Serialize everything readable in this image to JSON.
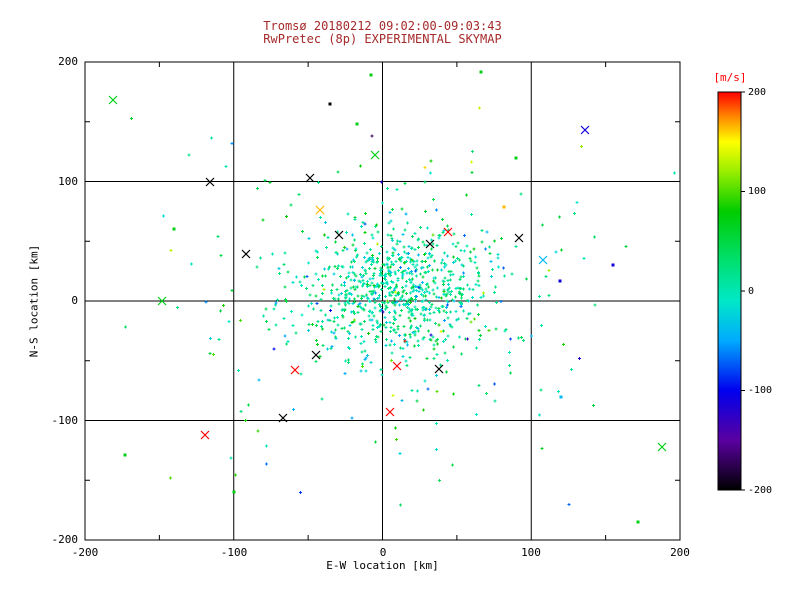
{
  "colors": {
    "background": "#ffffff",
    "title": "#a52a2a",
    "axis": "#000000",
    "colorbar_label": "#ff0000"
  },
  "chart_data": {
    "type": "scatter",
    "title": "Tromsø 20180212 09:02:00-09:03:43",
    "subtitle": "RwPretec (8p) EXPERIMENTAL SKYMAP",
    "xlabel": "E-W location [km]",
    "ylabel": "N-S location [km]",
    "xlim": [
      -200,
      200
    ],
    "ylim": [
      -200,
      200
    ],
    "xticks": [
      -200,
      -100,
      0,
      100,
      200
    ],
    "yticks": [
      200,
      100,
      0,
      -100,
      -200
    ],
    "grid": true,
    "gridlines": [
      -100,
      0,
      100
    ],
    "legend_position": "none",
    "colorbar": {
      "label": "[m/s]",
      "ticks": [
        200,
        100,
        0,
        -100,
        -200
      ],
      "min": -200,
      "max": 200,
      "position": "right"
    },
    "colormap": [
      {
        "v": -200,
        "c": "#000000"
      },
      {
        "v": -150,
        "c": "#5a00a0"
      },
      {
        "v": -100,
        "c": "#0000ee"
      },
      {
        "v": -50,
        "c": "#00aaff"
      },
      {
        "v": -10,
        "c": "#00e8c8"
      },
      {
        "v": 30,
        "c": "#00e070"
      },
      {
        "v": 80,
        "c": "#00cc00"
      },
      {
        "v": 120,
        "c": "#99ee00"
      },
      {
        "v": 150,
        "c": "#ffff00"
      },
      {
        "v": 175,
        "c": "#ff8800"
      },
      {
        "v": 200,
        "c": "#ff0000"
      }
    ],
    "clusters": [
      {
        "count": 650,
        "cx": 14,
        "cy": 10,
        "sx": 30,
        "sy": 26,
        "vmean": 10,
        "vsigma": 25,
        "seed": 101
      },
      {
        "count": 260,
        "cx": 10,
        "cy": 8,
        "sx": 55,
        "sy": 48,
        "vmean": 15,
        "vsigma": 45,
        "seed": 202
      },
      {
        "count": 120,
        "cx": 0,
        "cy": 0,
        "sx": 95,
        "sy": 88,
        "vmean": 25,
        "vsigma": 60,
        "seed": 303
      }
    ],
    "outliers": [
      {
        "x": -181,
        "y": 168,
        "v": 70,
        "marker": "x"
      },
      {
        "x": -35,
        "y": 165,
        "v": -200,
        "marker": "s"
      },
      {
        "x": -5,
        "y": 122,
        "v": 70,
        "marker": "x"
      },
      {
        "x": 136,
        "y": 143,
        "v": -110,
        "marker": "x"
      },
      {
        "x": -116,
        "y": 100,
        "v": -200,
        "marker": "x"
      },
      {
        "x": -49,
        "y": 103,
        "v": -200,
        "marker": "x"
      },
      {
        "x": -42,
        "y": 76,
        "v": 165,
        "marker": "x"
      },
      {
        "x": -92,
        "y": 39,
        "v": -200,
        "marker": "x"
      },
      {
        "x": -29,
        "y": 55,
        "v": -200,
        "marker": "x"
      },
      {
        "x": 32,
        "y": 48,
        "v": -200,
        "marker": "x"
      },
      {
        "x": 44,
        "y": 58,
        "v": 200,
        "marker": "x"
      },
      {
        "x": 92,
        "y": 53,
        "v": -200,
        "marker": "x"
      },
      {
        "x": 108,
        "y": 34,
        "v": -40,
        "marker": "x"
      },
      {
        "x": 119,
        "y": 17,
        "v": -110,
        "marker": "s"
      },
      {
        "x": -148,
        "y": 0,
        "v": 70,
        "marker": "x"
      },
      {
        "x": -59,
        "y": -58,
        "v": 200,
        "marker": "x"
      },
      {
        "x": -45,
        "y": -45,
        "v": -200,
        "marker": "x"
      },
      {
        "x": 10,
        "y": -54,
        "v": 200,
        "marker": "x"
      },
      {
        "x": 38,
        "y": -57,
        "v": -200,
        "marker": "x"
      },
      {
        "x": -67,
        "y": -98,
        "v": -200,
        "marker": "x"
      },
      {
        "x": 5,
        "y": -93,
        "v": 200,
        "marker": "x"
      },
      {
        "x": -119,
        "y": -112,
        "v": 200,
        "marker": "x"
      },
      {
        "x": 188,
        "y": -122,
        "v": 70,
        "marker": "x"
      },
      {
        "x": -173,
        "y": -129,
        "v": 70,
        "marker": "s"
      },
      {
        "x": 82,
        "y": 79,
        "v": 165,
        "marker": "s"
      },
      {
        "x": -8,
        "y": 189,
        "v": 70,
        "marker": "s"
      },
      {
        "x": 66,
        "y": 192,
        "v": 70,
        "marker": "s"
      },
      {
        "x": -100,
        "y": -160,
        "v": 70,
        "marker": "s"
      },
      {
        "x": 120,
        "y": -80,
        "v": -40,
        "marker": "s"
      },
      {
        "x": 155,
        "y": 30,
        "v": -110,
        "marker": "s"
      },
      {
        "x": 90,
        "y": 120,
        "v": 70,
        "marker": "s"
      },
      {
        "x": -140,
        "y": 60,
        "v": 70,
        "marker": "s"
      },
      {
        "x": -17,
        "y": 148,
        "v": 70,
        "marker": "s"
      },
      {
        "x": 172,
        "y": -185,
        "v": 70,
        "marker": "s"
      }
    ]
  }
}
